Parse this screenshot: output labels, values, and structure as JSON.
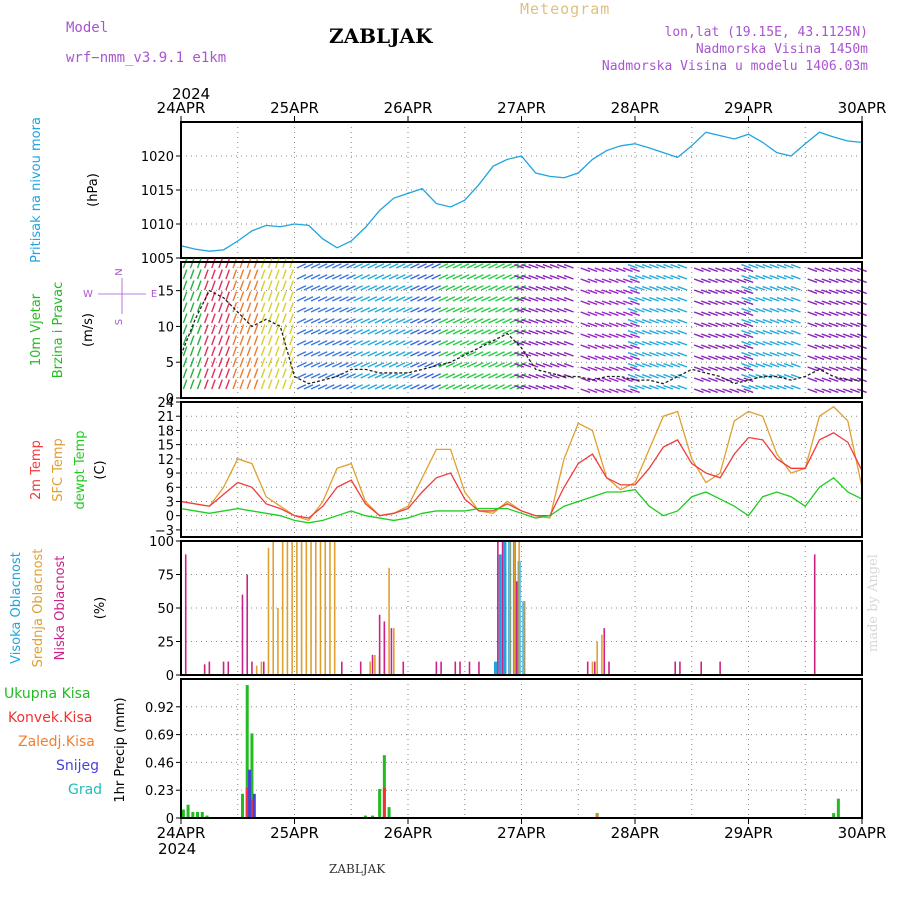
{
  "header": {
    "model_label": "Model",
    "model_name": "wrf−nmm_v3.9.1  e1km",
    "title": "ZABLJAK",
    "meteogram_label": "Meteogram",
    "location": "lon,lat (19.15E, 43.1125N)",
    "elevation": "Nadmorska Visina 1450m",
    "model_elevation": "Nadmorska Visina u modelu 1406.03m",
    "credit": "made by Angel",
    "footer_title": "ZABLJAK"
  },
  "colors": {
    "pressure": "#1fa4e0",
    "temp2m": "#f03c3c",
    "sfc_temp": "#e0a030",
    "dewpoint": "#22cc22",
    "cloud_high": "#1fa4e0",
    "cloud_mid": "#e0a030",
    "cloud_low": "#cc2288",
    "precip_total": "#22bb22",
    "precip_conv": "#ee3333",
    "precip_frozen": "#f08030",
    "snow": "#4444dd",
    "graupel": "#22bbbb"
  },
  "time_axis": {
    "year": "2024",
    "days": [
      "24APR",
      "25APR",
      "26APR",
      "27APR",
      "28APR",
      "29APR",
      "30APR"
    ]
  },
  "chart_data": [
    {
      "type": "line",
      "ylabels": [
        "Pritisak na nivou mora",
        "(hPa)"
      ],
      "ylim": [
        1005,
        1025
      ],
      "yticks": [
        "1005",
        "1010",
        "1015",
        "1020"
      ],
      "x_hours": [
        0,
        3,
        6,
        9,
        12,
        15,
        18,
        21,
        24,
        27,
        30,
        33,
        36,
        39,
        42,
        45,
        48,
        51,
        54,
        57,
        60,
        63,
        66,
        69,
        72,
        75,
        78,
        81,
        84,
        87,
        90,
        93,
        96,
        99,
        102,
        105,
        108,
        111,
        114,
        117,
        120,
        123,
        126,
        129,
        132,
        135,
        138,
        141,
        144
      ],
      "series": [
        {
          "key": "pressure",
          "values": [
            1006.8,
            1006.3,
            1006.0,
            1006.2,
            1007.5,
            1009.0,
            1009.8,
            1009.6,
            1010.0,
            1009.8,
            1007.8,
            1006.5,
            1007.5,
            1009.5,
            1012.0,
            1013.8,
            1014.5,
            1015.2,
            1013.0,
            1012.5,
            1013.5,
            1015.8,
            1018.5,
            1019.5,
            1020.0,
            1017.5,
            1017.0,
            1016.8,
            1017.5,
            1019.5,
            1020.8,
            1021.5,
            1021.8,
            1021.2,
            1020.5,
            1019.8,
            1021.5,
            1023.5,
            1023.0,
            1022.5,
            1023.2,
            1022.0,
            1020.5,
            1020.0,
            1021.8,
            1023.5,
            1022.8,
            1022.2,
            1022.0
          ]
        }
      ]
    },
    {
      "type": "line",
      "ylabels": [
        "10m Vjetar",
        "Brzina i Pravac",
        "(m/s)"
      ],
      "compass": {
        "north": "N",
        "south": "S",
        "west": "W",
        "east": "E"
      },
      "ylim": [
        0,
        19
      ],
      "yticks": [
        "0",
        "5",
        "10",
        "15"
      ],
      "x_hours": [
        0,
        3,
        6,
        9,
        12,
        15,
        18,
        21,
        24,
        27,
        30,
        33,
        36,
        39,
        42,
        45,
        48,
        51,
        54,
        57,
        60,
        63,
        66,
        69,
        72,
        75,
        78,
        81,
        84,
        87,
        90,
        93,
        96,
        99,
        102,
        105,
        108,
        111,
        114,
        117,
        120,
        123,
        126,
        129,
        132,
        135,
        138,
        141,
        144
      ],
      "series": [
        {
          "key": "speed",
          "values": [
            6,
            11,
            15,
            14,
            12,
            10,
            11,
            10,
            3,
            2,
            2.5,
            3,
            4,
            4,
            3.5,
            3.5,
            3.5,
            4,
            4.5,
            5,
            6,
            7,
            8,
            9,
            7,
            4,
            3.5,
            3,
            3,
            2.5,
            3,
            3,
            2.5,
            2.5,
            2,
            3,
            4,
            3.5,
            3,
            2,
            2.5,
            3,
            3,
            2.5,
            3,
            4,
            3,
            2.5,
            2.5
          ]
        }
      ]
    },
    {
      "type": "line",
      "ylabels": [
        "2m Temp",
        "SFC Temp",
        "dewpt Temp",
        "(C)"
      ],
      "ylim": [
        -4.5,
        24
      ],
      "yticks": [
        "−3",
        "0",
        "3",
        "6",
        "9",
        "12",
        "15",
        "18",
        "21",
        "24"
      ],
      "x_hours": [
        0,
        3,
        6,
        9,
        12,
        15,
        18,
        21,
        24,
        27,
        30,
        33,
        36,
        39,
        42,
        45,
        48,
        51,
        54,
        57,
        60,
        63,
        66,
        69,
        72,
        75,
        78,
        81,
        84,
        87,
        90,
        93,
        96,
        99,
        102,
        105,
        108,
        111,
        114,
        117,
        120,
        123,
        126,
        129,
        132,
        135,
        138,
        141,
        144
      ],
      "series": [
        {
          "key": "sfc_temp",
          "values": [
            3,
            2.5,
            2,
            6,
            12,
            11,
            4,
            2,
            0,
            -1,
            3,
            10,
            11,
            3,
            0,
            0.5,
            2,
            8,
            14,
            14,
            5,
            1,
            0.5,
            3,
            1,
            0,
            -0.5,
            12,
            19.5,
            18,
            8,
            5.5,
            7,
            14,
            21,
            22,
            12,
            7,
            9,
            20,
            22,
            21,
            13,
            9,
            10,
            21,
            23,
            20,
            6
          ]
        },
        {
          "key": "temp2m",
          "values": [
            3,
            2.5,
            2,
            4.5,
            7,
            6,
            2.5,
            1.5,
            0,
            -0.5,
            2,
            6,
            7.5,
            2.5,
            0,
            0.5,
            1.5,
            5,
            8,
            9,
            3.5,
            1,
            1,
            2.5,
            1,
            0,
            0,
            6,
            11,
            13,
            8,
            6.5,
            6.5,
            10,
            14.5,
            16,
            11,
            9,
            8,
            13,
            16.5,
            16,
            12,
            10,
            10,
            16,
            17.5,
            15.5,
            9.5
          ]
        },
        {
          "key": "dewpoint",
          "values": [
            1.5,
            1,
            0.5,
            1,
            1.5,
            1,
            0.5,
            0,
            -1,
            -1.5,
            -1,
            0,
            1,
            0,
            -0.5,
            -1,
            -0.5,
            0.5,
            1,
            1,
            1,
            1.5,
            1.5,
            1.5,
            0.5,
            -0.5,
            0,
            2,
            3,
            4,
            5,
            5,
            5.5,
            2,
            0,
            1,
            4,
            5,
            3.5,
            2,
            0,
            4,
            5,
            4,
            2,
            6,
            8,
            5,
            3.5
          ]
        }
      ]
    },
    {
      "type": "bar",
      "ylabels": [
        "Visoka Oblacnost",
        "Srednja Oblacnost",
        "Niska Oblacnost",
        "(%)"
      ],
      "ylim": [
        0,
        100
      ],
      "yticks": [
        "0",
        "25",
        "50",
        "75",
        "100"
      ],
      "series": [
        {
          "key": "cloud_high",
          "bars": [
            [
              66.5,
              10
            ],
            [
              67.5,
              90
            ],
            [
              68.5,
              100
            ],
            [
              69.5,
              100
            ],
            [
              70.5,
              100
            ],
            [
              71.5,
              85
            ],
            [
              72.5,
              55
            ]
          ]
        },
        {
          "key": "cloud_mid",
          "bars": [
            [
              16,
              7
            ],
            [
              17,
              10
            ],
            [
              18.5,
              95
            ],
            [
              19.5,
              100
            ],
            [
              20.5,
              50
            ],
            [
              21.5,
              100
            ],
            [
              22.5,
              100
            ],
            [
              23.5,
              100
            ],
            [
              24.5,
              100
            ],
            [
              25.5,
              100
            ],
            [
              26.5,
              100
            ],
            [
              27.5,
              100
            ],
            [
              28.5,
              100
            ],
            [
              29.5,
              100
            ],
            [
              30.5,
              100
            ],
            [
              31.5,
              100
            ],
            [
              32.5,
              100
            ],
            [
              40,
              10
            ],
            [
              41,
              15
            ],
            [
              42,
              15
            ],
            [
              43,
              35
            ],
            [
              44,
              80
            ],
            [
              45,
              35
            ],
            [
              69.5,
              100
            ],
            [
              70.5,
              100
            ],
            [
              71.5,
              100
            ],
            [
              72.5,
              55
            ],
            [
              87,
              10
            ],
            [
              88,
              25
            ],
            [
              89,
              30
            ]
          ]
        },
        {
          "key": "cloud_low",
          "bars": [
            [
              1,
              90
            ],
            [
              5,
              8
            ],
            [
              6,
              10
            ],
            [
              9,
              10
            ],
            [
              10,
              10
            ],
            [
              13,
              60
            ],
            [
              14,
              75
            ],
            [
              15,
              10
            ],
            [
              17.5,
              10
            ],
            [
              34,
              10
            ],
            [
              38,
              10
            ],
            [
              40.5,
              15
            ],
            [
              42,
              45
            ],
            [
              43,
              40
            ],
            [
              44.5,
              35
            ],
            [
              47,
              10
            ],
            [
              54,
              10
            ],
            [
              55,
              10
            ],
            [
              58,
              10
            ],
            [
              59,
              10
            ],
            [
              61,
              10
            ],
            [
              63,
              10
            ],
            [
              67,
              100
            ],
            [
              68,
              100
            ],
            [
              71,
              70
            ],
            [
              86,
              10
            ],
            [
              87.5,
              10
            ],
            [
              89.5,
              35
            ],
            [
              90.5,
              10
            ],
            [
              104.5,
              10
            ],
            [
              105.5,
              10
            ],
            [
              110,
              10
            ],
            [
              114,
              10
            ],
            [
              134,
              90
            ]
          ]
        }
      ]
    },
    {
      "type": "bar",
      "ylabels": [
        "1hr Precip (mm)"
      ],
      "legend": [
        "Ukupna Kisa",
        "Konvek.Kisa",
        "Zaledj.Kisa",
        "Snijeg",
        "Grad"
      ],
      "ylim": [
        0,
        1.15
      ],
      "yticks": [
        "0",
        "0.23",
        "0.46",
        "0.69",
        "0.92"
      ],
      "series": [
        {
          "key": "precip_total",
          "bars": [
            [
              0.5,
              0.07
            ],
            [
              1.5,
              0.11
            ],
            [
              2.5,
              0.05
            ],
            [
              3.5,
              0.05
            ],
            [
              4.5,
              0.05
            ],
            [
              5.5,
              0.02
            ],
            [
              13,
              0.2
            ],
            [
              14,
              1.1
            ],
            [
              15,
              0.7
            ],
            [
              39,
              0.02
            ],
            [
              40.5,
              0.02
            ],
            [
              42,
              0.24
            ],
            [
              43,
              0.52
            ],
            [
              44,
              0.09
            ],
            [
              88,
              0.04
            ],
            [
              138,
              0.04
            ],
            [
              139,
              0.16
            ]
          ]
        },
        {
          "key": "precip_conv",
          "bars": [
            [
              14,
              0.25
            ],
            [
              15,
              0.15
            ],
            [
              43,
              0.25
            ]
          ]
        },
        {
          "key": "snow",
          "bars": [
            [
              14.5,
              0.4
            ],
            [
              15.5,
              0.2
            ]
          ]
        },
        {
          "key": "precip_frozen",
          "bars": [
            [
              88,
              0.03
            ]
          ]
        }
      ]
    }
  ]
}
